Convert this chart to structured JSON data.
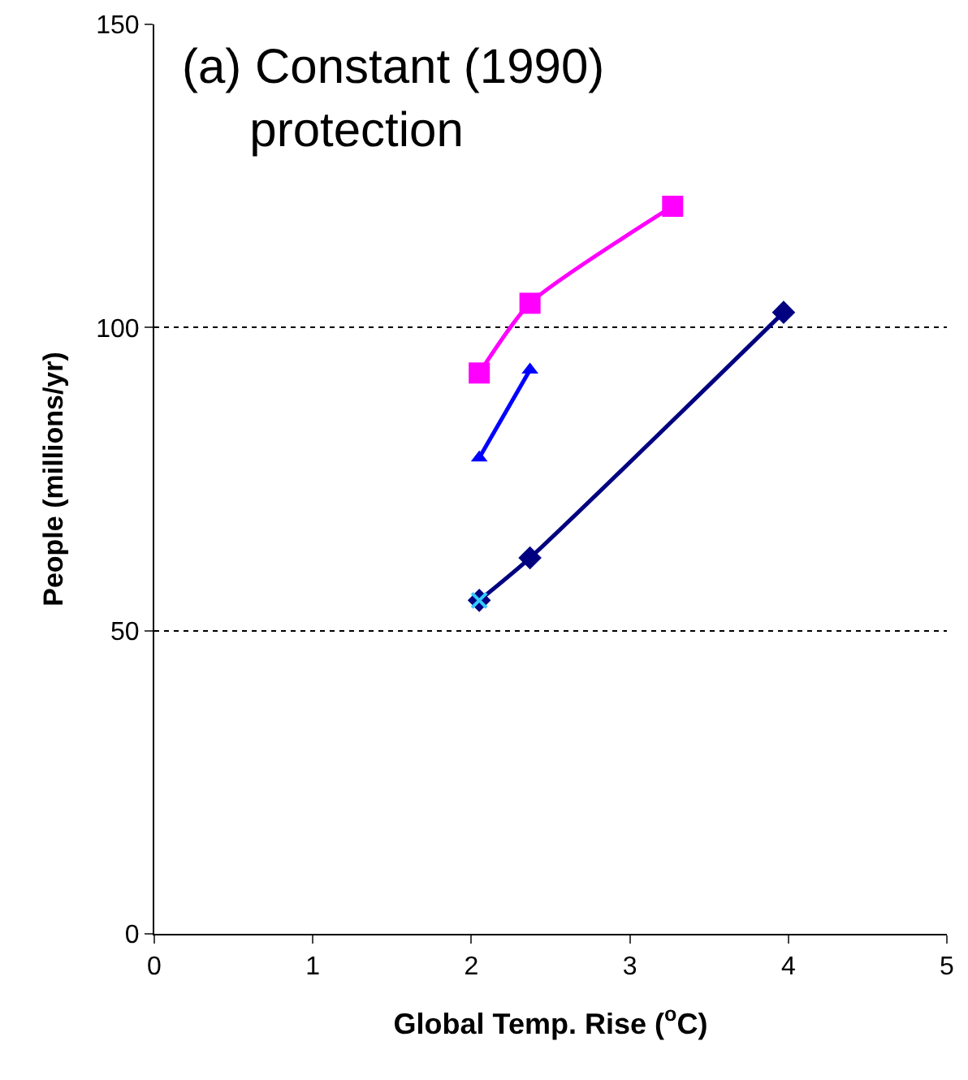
{
  "chart_data": {
    "type": "line",
    "title": "(a) Constant (1990)\n     protection",
    "xlabel": "Global Temp. Rise ($^{o}$C)",
    "ylabel": "People (millions/yr)",
    "xlim": [
      0,
      5
    ],
    "xticks": [
      0,
      1,
      2,
      3,
      4,
      5
    ],
    "ylim": [
      0,
      150
    ],
    "yticks": [
      0,
      50,
      100,
      150
    ],
    "grid": "y",
    "series": [
      {
        "x": [
          2.05,
          2.37,
          3.27
        ],
        "values": [
          92.5,
          104,
          120
        ],
        "color": "#ff00ff",
        "marker": "square"
      },
      {
        "x": [
          2.05,
          2.37
        ],
        "values": [
          78.5,
          93
        ],
        "color": "#0000ff",
        "marker": "triangle"
      },
      {
        "x": [
          2.05,
          2.37,
          3.97
        ],
        "values": [
          55,
          62,
          102.5
        ],
        "color": "#000080",
        "marker": "diamond"
      },
      {
        "type": "scatter",
        "x": [
          2.05
        ],
        "values": [
          55
        ],
        "color": "#33ccff",
        "marker": "cross"
      }
    ]
  }
}
